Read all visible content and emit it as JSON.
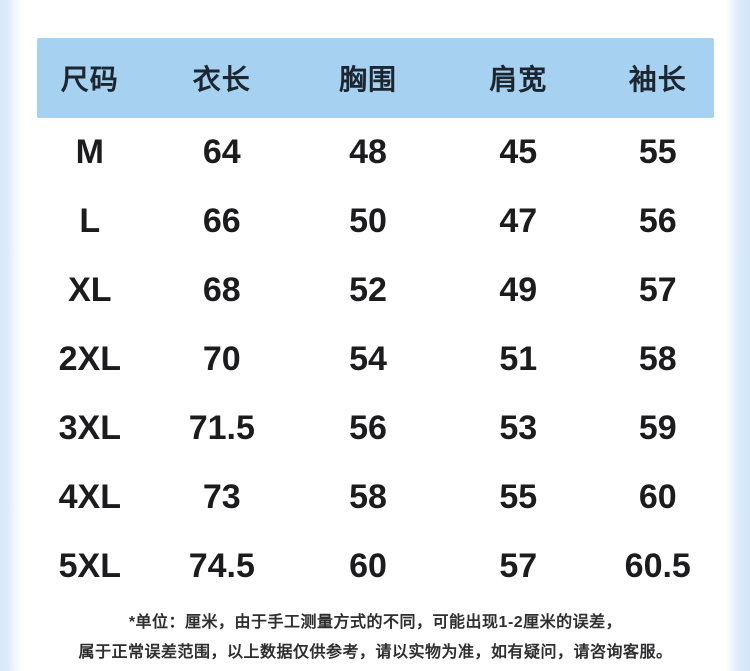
{
  "chart_data": {
    "type": "table",
    "columns": [
      "尺码",
      "衣长",
      "胸围",
      "肩宽",
      "袖长"
    ],
    "rows": [
      [
        "M",
        "64",
        "48",
        "45",
        "55"
      ],
      [
        "L",
        "66",
        "50",
        "47",
        "56"
      ],
      [
        "XL",
        "68",
        "52",
        "49",
        "57"
      ],
      [
        "2XL",
        "70",
        "54",
        "51",
        "58"
      ],
      [
        "3XL",
        "71.5",
        "56",
        "53",
        "59"
      ],
      [
        "4XL",
        "73",
        "58",
        "55",
        "60"
      ],
      [
        "5XL",
        "74.5",
        "60",
        "57",
        "60.5"
      ]
    ],
    "unit": "厘米",
    "title": "",
    "legend_position": "none",
    "grid": false
  },
  "table_meta": {
    "column_keys": [
      "size",
      "garment-length",
      "bust",
      "shoulder-width",
      "sleeve-length"
    ]
  },
  "footnote": {
    "line1": "*单位：厘米，由于手工测量方式的不同，可能出现1-2厘米的误差，",
    "line2": "属于正常误差范围，以上数据仅供参考，请以实物为准，如有疑问，请咨询客服。"
  },
  "colors": {
    "header_band_bg": "#a6d1f0",
    "page_edge_blue": "#d7e8f8",
    "card_bg": "#ffffff",
    "header_text": "#1c2630",
    "data_text": "#1c1c1e",
    "footnote_text": "#2f2f31"
  }
}
